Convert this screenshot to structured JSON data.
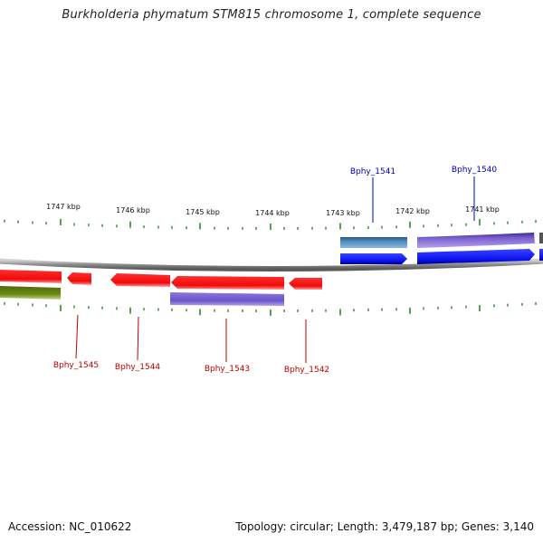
{
  "title": "Burkholderia phymatum STM815 chromosome 1, complete sequence",
  "footer": {
    "accession": "Accession: NC_010622",
    "summary": "Topology: circular; Length: 3,479,187 bp; Genes: 3,140"
  },
  "colors": {
    "forward_gene": "#0a12f0",
    "forward_gene_alt": "#4a88b8",
    "forward_cds": "#7a5fd0",
    "reverse_gene": "#f00a0a",
    "reverse_cds": "#6a54c8",
    "reverse_other": "#6a8a14",
    "backbone": "#8a8a8a",
    "ticks": "#2a8a2a",
    "forward_label": "#0000bb",
    "reverse_label": "#bb0000"
  },
  "scale": {
    "unit": "kbp",
    "labels": [
      "1747 kbp",
      "1746 kbp",
      "1745 kbp",
      "1744 kbp",
      "1743 kbp",
      "1742 kbp",
      "1741 kbp"
    ]
  },
  "forward_genes": [
    {
      "label": "Bphy_1541"
    },
    {
      "label": "Bphy_1540"
    }
  ],
  "reverse_genes": [
    {
      "label": "Bphy_1545"
    },
    {
      "label": "Bphy_1544"
    },
    {
      "label": "Bphy_1543"
    },
    {
      "label": "Bphy_1542"
    }
  ]
}
